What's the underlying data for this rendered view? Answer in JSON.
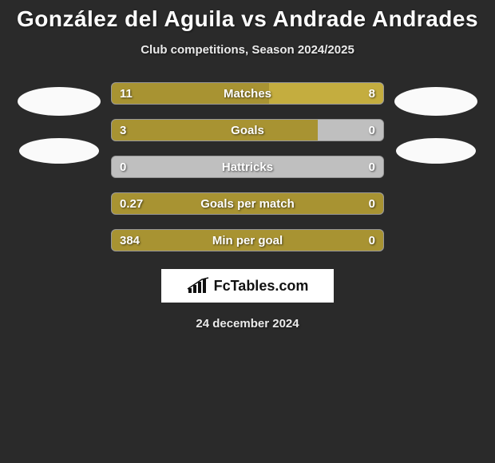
{
  "title": "González del Aguila vs Andrade Andrades",
  "subtitle": "Club competitions, Season 2024/2025",
  "date": "24 december 2024",
  "logo_text": "FcTables.com",
  "colors": {
    "background": "#2a2a2a",
    "left_bar": "#a89332",
    "right_bar": "#c4ad3f",
    "empty_bar": "#bfbfbf",
    "avatar": "#fafafa",
    "text": "#ffffff"
  },
  "avatars": {
    "left": [
      {
        "w": 104,
        "h": 36
      },
      {
        "w": 100,
        "h": 32
      }
    ],
    "right": [
      {
        "w": 104,
        "h": 36
      },
      {
        "w": 100,
        "h": 32
      }
    ]
  },
  "stats": [
    {
      "label": "Matches",
      "left_val": "11",
      "right_val": "8",
      "left_pct": 57.9,
      "right_pct": 42.1,
      "left_zero": false,
      "right_zero": false
    },
    {
      "label": "Goals",
      "left_val": "3",
      "right_val": "0",
      "left_pct": 76.0,
      "right_pct": 24.0,
      "left_zero": false,
      "right_zero": true
    },
    {
      "label": "Hattricks",
      "left_val": "0",
      "right_val": "0",
      "left_pct": 50.0,
      "right_pct": 50.0,
      "left_zero": true,
      "right_zero": true
    },
    {
      "label": "Goals per match",
      "left_val": "0.27",
      "right_val": "0",
      "left_pct": 100,
      "right_pct": 0,
      "left_zero": false,
      "right_zero": true
    },
    {
      "label": "Min per goal",
      "left_val": "384",
      "right_val": "0",
      "left_pct": 100,
      "right_pct": 0,
      "left_zero": false,
      "right_zero": true
    }
  ],
  "bar_style": {
    "height": 28,
    "border_radius": 6,
    "gap": 18,
    "label_fontsize": 15,
    "label_fontweight": 700
  }
}
